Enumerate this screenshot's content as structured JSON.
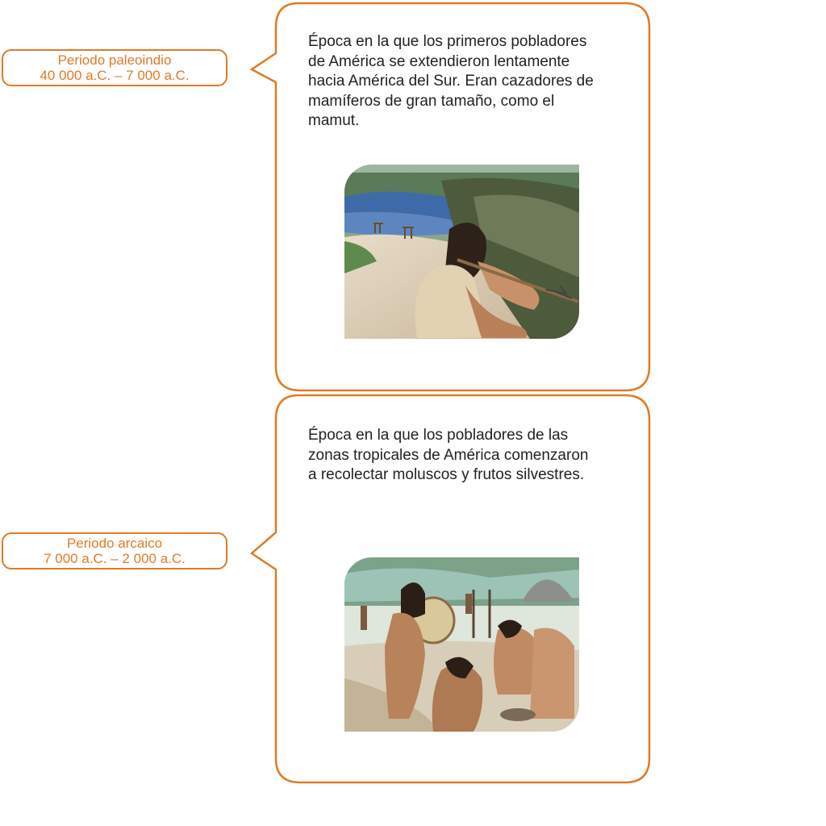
{
  "colors": {
    "accent": "#e07b26",
    "text": "#222222"
  },
  "periods": [
    {
      "name": "Periodo paleoindio",
      "dates": "40 000 a.C. – 7 000 a.C.",
      "description": "Época en la que los primeros pobladores de América se extendieron lentamente hacia América del Sur. Eran cazadores de mamíferos de gran tamaño, como el mamut.",
      "illustration": "hunter-with-spear-thrower"
    },
    {
      "name": "Periodo arcaico",
      "dates": "7 000 a.C. – 2 000 a.C.",
      "description": "Época en la que los pobladores de las zonas tropicales de América comenzaron a recolectar moluscos y frutos silvestres.",
      "illustration": "gatherers-camp"
    }
  ]
}
